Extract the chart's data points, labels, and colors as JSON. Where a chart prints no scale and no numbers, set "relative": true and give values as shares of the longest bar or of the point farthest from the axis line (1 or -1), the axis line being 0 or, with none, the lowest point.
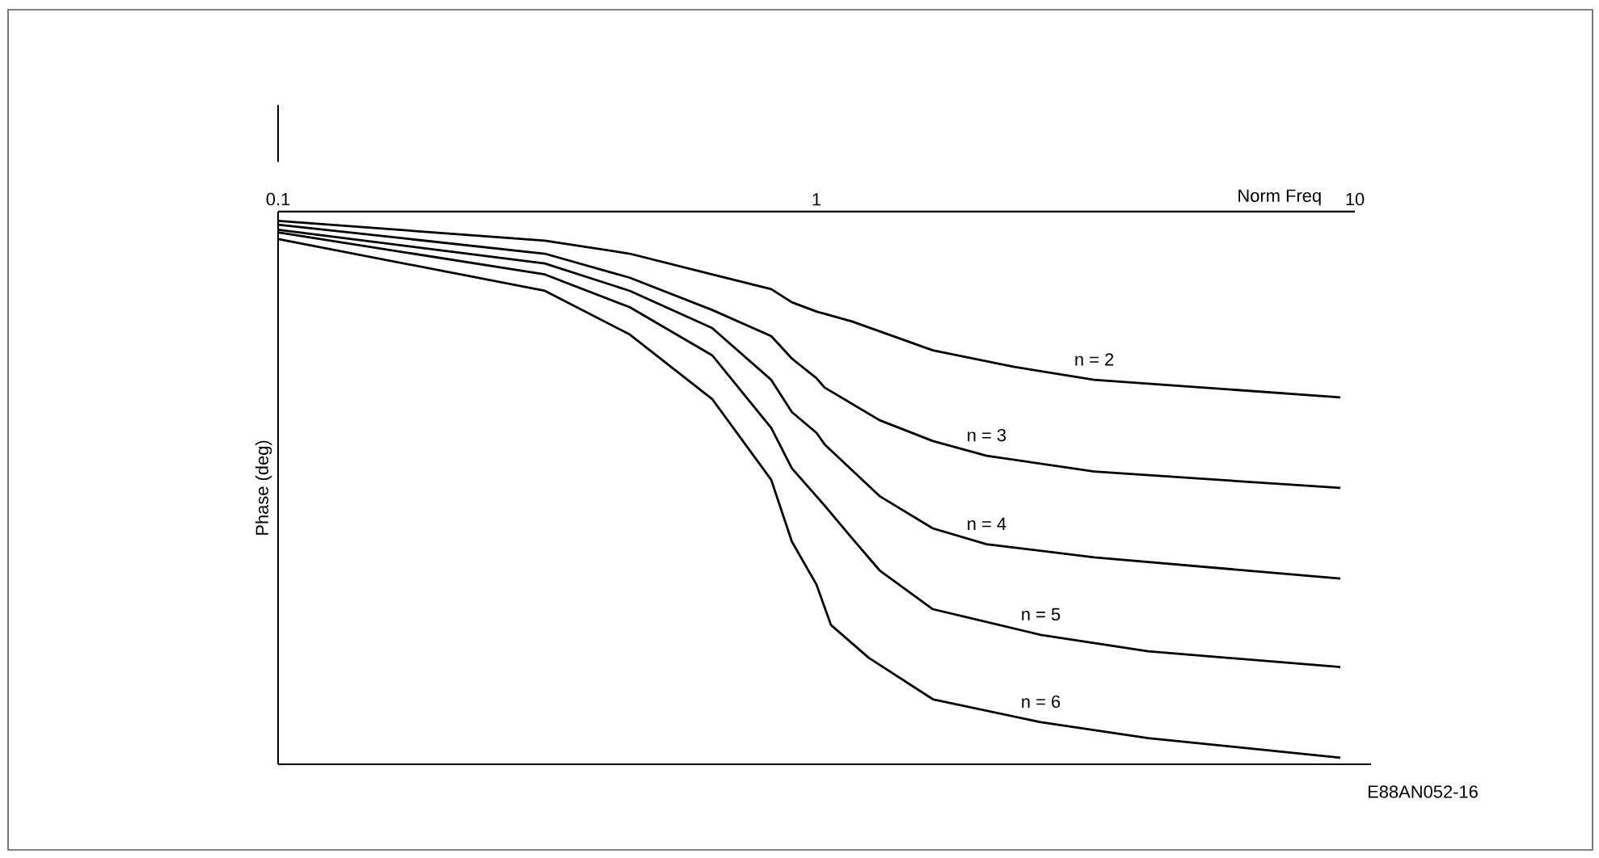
{
  "chart_data": {
    "type": "line",
    "xlabel": "Norm Freq",
    "ylabel": "Phase (deg)",
    "relative": true,
    "log": "x",
    "xlim": [
      0.1,
      10
    ],
    "xticks": [
      0.1,
      1,
      10
    ],
    "line_style": "solid",
    "annotations": [
      "E88AN052-16"
    ],
    "series": [
      {
        "name": "n = 2",
        "color": "#000000",
        "x": [
          0.1,
          0.313,
          0.45,
          0.64,
          0.824,
          0.9,
          1.0,
          1.164,
          1.645,
          2.32,
          3.28,
          5.2,
          9.4
        ],
        "values": [
          -0.017,
          -0.053,
          -0.077,
          -0.115,
          -0.142,
          -0.166,
          -0.183,
          -0.201,
          -0.254,
          -0.284,
          -0.308,
          -0.322,
          -0.34
        ]
      },
      {
        "name": "n = 3",
        "color": "#000000",
        "x": [
          0.1,
          0.313,
          0.45,
          0.64,
          0.824,
          0.9,
          1.0,
          1.035,
          1.31,
          1.645,
          2.07,
          3.28,
          9.4
        ],
        "values": [
          -0.024,
          -0.077,
          -0.121,
          -0.18,
          -0.228,
          -0.269,
          -0.305,
          -0.322,
          -0.382,
          -0.42,
          -0.447,
          -0.476,
          -0.506
        ]
      },
      {
        "name": "n = 4",
        "color": "#000000",
        "x": [
          0.1,
          0.313,
          0.45,
          0.64,
          0.824,
          0.9,
          1.0,
          1.035,
          1.31,
          1.645,
          2.07,
          3.28,
          9.4
        ],
        "values": [
          -0.033,
          -0.095,
          -0.145,
          -0.213,
          -0.308,
          -0.367,
          -0.405,
          -0.426,
          -0.521,
          -0.58,
          -0.609,
          -0.633,
          -0.672
        ]
      },
      {
        "name": "n = 5",
        "color": "#000000",
        "x": [
          0.1,
          0.313,
          0.45,
          0.64,
          0.824,
          0.9,
          1.035,
          1.164,
          1.31,
          1.645,
          2.61,
          4.13,
          9.4
        ],
        "values": [
          -0.038,
          -0.115,
          -0.175,
          -0.263,
          -0.396,
          -0.47,
          -0.538,
          -0.598,
          -0.657,
          -0.728,
          -0.775,
          -0.805,
          -0.834
        ]
      },
      {
        "name": "n = 6",
        "color": "#000000",
        "x": [
          0.1,
          0.313,
          0.45,
          0.64,
          0.824,
          0.9,
          1.0,
          1.064,
          1.25,
          1.645,
          2.61,
          4.13,
          9.4
        ],
        "values": [
          -0.05,
          -0.145,
          -0.225,
          -0.343,
          -0.491,
          -0.604,
          -0.683,
          -0.757,
          -0.817,
          -0.893,
          -0.935,
          -0.964,
          -1.0
        ]
      }
    ]
  }
}
